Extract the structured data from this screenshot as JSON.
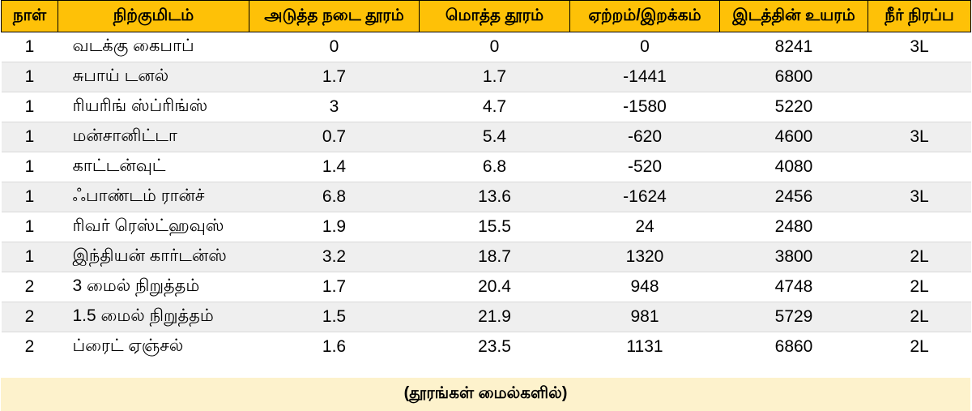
{
  "table": {
    "headers": [
      "நாள்",
      "நிற்குமிடம்",
      "அடுத்த நடை தூரம்",
      "மொத்த தூரம்",
      "ஏற்றம்/இறக்கம்",
      "இடத்தின் உயரம்",
      "நீர் நிரப்ப"
    ],
    "rows": [
      [
        "1",
        "வடக்கு கைபாப்",
        "0",
        "0",
        "0",
        "8241",
        "3L"
      ],
      [
        "1",
        "சுபாய் டனல்",
        "1.7",
        "1.7",
        "-1441",
        "6800",
        ""
      ],
      [
        "1",
        "ரியரிங் ஸ்ப்ரிங்ஸ்",
        "3",
        "4.7",
        "-1580",
        "5220",
        ""
      ],
      [
        "1",
        "மன்சானிட்டா",
        "0.7",
        "5.4",
        "-620",
        "4600",
        "3L"
      ],
      [
        "1",
        "காட்டன்வுட்",
        "1.4",
        "6.8",
        "-520",
        "4080",
        ""
      ],
      [
        "1",
        "ஃபாண்டம் ரான்ச்",
        "6.8",
        "13.6",
        "-1624",
        "2456",
        "3L"
      ],
      [
        "1",
        "ரிவர் ரெஸ்ட்ஹவுஸ்",
        "1.9",
        "15.5",
        "24",
        "2480",
        ""
      ],
      [
        "1",
        "இந்தியன் கார்டன்ஸ்",
        "3.2",
        "18.7",
        "1320",
        "3800",
        "2L"
      ],
      [
        "2",
        "3 மைல் நிறுத்தம்",
        "1.7",
        "20.4",
        "948",
        "4748",
        "2L"
      ],
      [
        "2",
        "1.5 மைல் நிறுத்தம்",
        "1.5",
        "21.9",
        "981",
        "5729",
        "2L"
      ],
      [
        "2",
        "ப்ரைட் ஏஞ்சல்",
        "1.6",
        "23.5",
        "1131",
        "6860",
        "2L"
      ]
    ],
    "footer": "(தூரங்கள் மைல்களில்)"
  },
  "colors": {
    "header_fill": "#FEC107",
    "band_fill": "#EFEFEF",
    "footer_fill": "#FDF2CC"
  }
}
